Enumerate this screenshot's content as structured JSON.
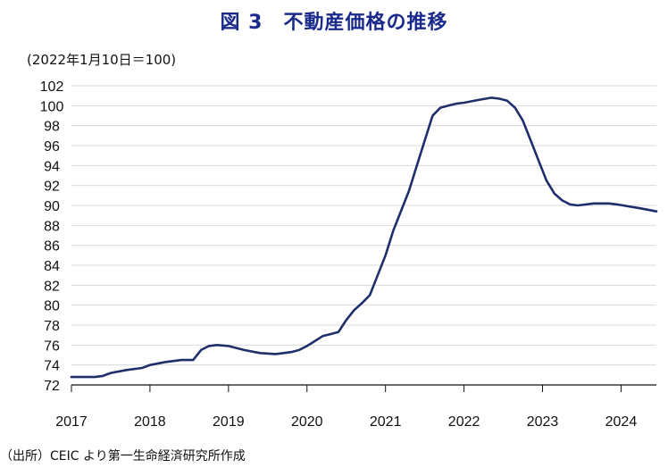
{
  "title": "図 3　不動産価格の推移",
  "unit_note": "(2022年1月10日＝100)",
  "source": "（出所）CEIC より第一生命経済研究所作成",
  "colors": {
    "title": "#1a2a8c",
    "line": "#1f2f6b",
    "grid": "#d9d9d9"
  },
  "chart_data": {
    "type": "line",
    "title": "図 3　不動産価格の推移",
    "ylabel": "(2022年1月10日＝100)",
    "xlabel": "",
    "ylim": [
      72,
      102
    ],
    "y_ticks": [
      72,
      74,
      76,
      78,
      80,
      82,
      84,
      86,
      88,
      90,
      92,
      94,
      96,
      98,
      100,
      102
    ],
    "x_ticks": [
      "2017",
      "2018",
      "2019",
      "2020",
      "2021",
      "2022",
      "2023",
      "2024"
    ],
    "xlim": [
      2017.0,
      2024.45
    ],
    "grid": true,
    "series": [
      {
        "x": [
          2017.0,
          2017.3,
          2017.4,
          2017.5,
          2017.7,
          2017.9,
          2018.0,
          2018.2,
          2018.4,
          2018.55,
          2018.65,
          2018.75,
          2018.85,
          2019.0,
          2019.2,
          2019.4,
          2019.6,
          2019.8,
          2019.9,
          2020.0,
          2020.1,
          2020.2,
          2020.3,
          2020.4,
          2020.5,
          2020.6,
          2020.7,
          2020.8,
          2020.9,
          2021.0,
          2021.1,
          2021.2,
          2021.3,
          2021.4,
          2021.5,
          2021.6,
          2021.7,
          2021.8,
          2021.9,
          2022.0,
          2022.2,
          2022.35,
          2022.45,
          2022.55,
          2022.65,
          2022.75,
          2022.85,
          2022.95,
          2023.05,
          2023.15,
          2023.25,
          2023.35,
          2023.45,
          2023.55,
          2023.65,
          2023.75,
          2023.85,
          2023.95,
          2024.1,
          2024.25,
          2024.45
        ],
        "y": [
          72.8,
          72.8,
          72.9,
          73.2,
          73.5,
          73.7,
          74.0,
          74.3,
          74.5,
          74.5,
          75.5,
          75.9,
          76.0,
          75.9,
          75.5,
          75.2,
          75.1,
          75.3,
          75.5,
          75.9,
          76.4,
          76.9,
          77.1,
          77.3,
          78.5,
          79.5,
          80.2,
          81.0,
          83.0,
          85.0,
          87.5,
          89.5,
          91.5,
          94.0,
          96.5,
          99.0,
          99.8,
          100.0,
          100.2,
          100.3,
          100.6,
          100.8,
          100.7,
          100.5,
          99.8,
          98.5,
          96.5,
          94.5,
          92.5,
          91.2,
          90.5,
          90.1,
          90.0,
          90.1,
          90.2,
          90.2,
          90.2,
          90.1,
          89.9,
          89.7,
          89.4
        ]
      }
    ]
  }
}
